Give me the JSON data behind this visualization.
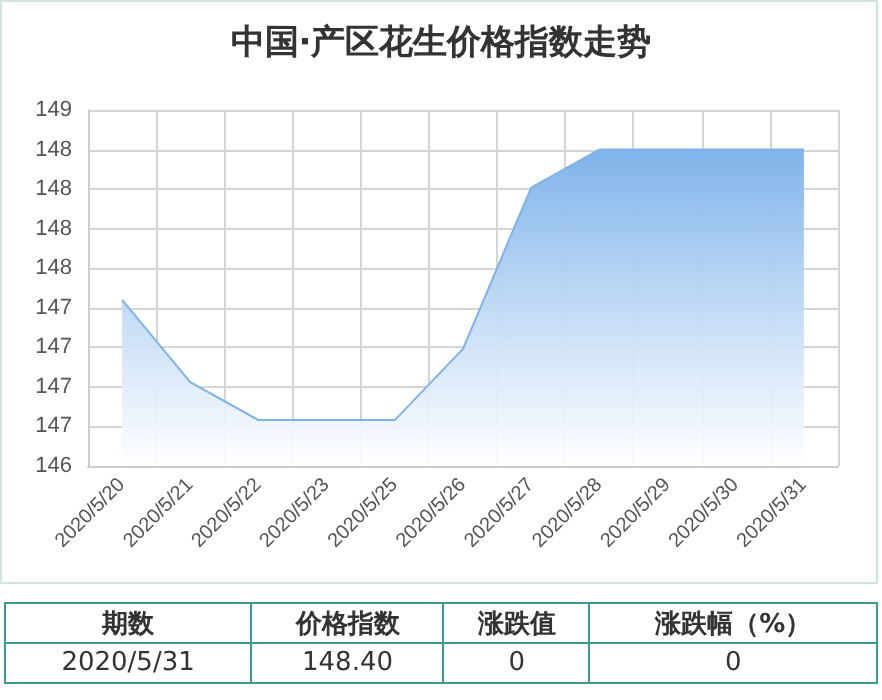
{
  "chart_data": {
    "type": "area",
    "title": "中国·产区花生价格指数走势",
    "categories": [
      "2020/5/20",
      "2020/5/21",
      "2020/5/22",
      "2020/5/23",
      "2020/5/25",
      "2020/5/26",
      "2020/5/27",
      "2020/5/28",
      "2020/5/29",
      "2020/5/30",
      "2020/5/31"
    ],
    "series": [
      {
        "color": "#7fb3ea",
        "values": [
          147.45,
          146.93,
          146.69,
          146.69,
          146.69,
          147.14,
          148.16,
          148.4,
          148.4,
          148.4,
          148.4
        ]
      }
    ],
    "ylim": [
      146.4,
      148.65
    ],
    "yticks": [
      {
        "value": 146.4,
        "label": "146"
      },
      {
        "value": 146.65,
        "label": "147"
      },
      {
        "value": 146.9,
        "label": "147"
      },
      {
        "value": 147.15,
        "label": "147"
      },
      {
        "value": 147.4,
        "label": "147"
      },
      {
        "value": 147.65,
        "label": "148"
      },
      {
        "value": 147.9,
        "label": "148"
      },
      {
        "value": 148.15,
        "label": "148"
      },
      {
        "value": 148.4,
        "label": "148"
      },
      {
        "value": 148.65,
        "label": "149"
      }
    ],
    "grid": true,
    "annotations": [
      "期数",
      "价格指数",
      "涨跌值",
      "涨跌幅（%）",
      "2020/5/31",
      "148.40",
      "0",
      "0"
    ]
  }
}
